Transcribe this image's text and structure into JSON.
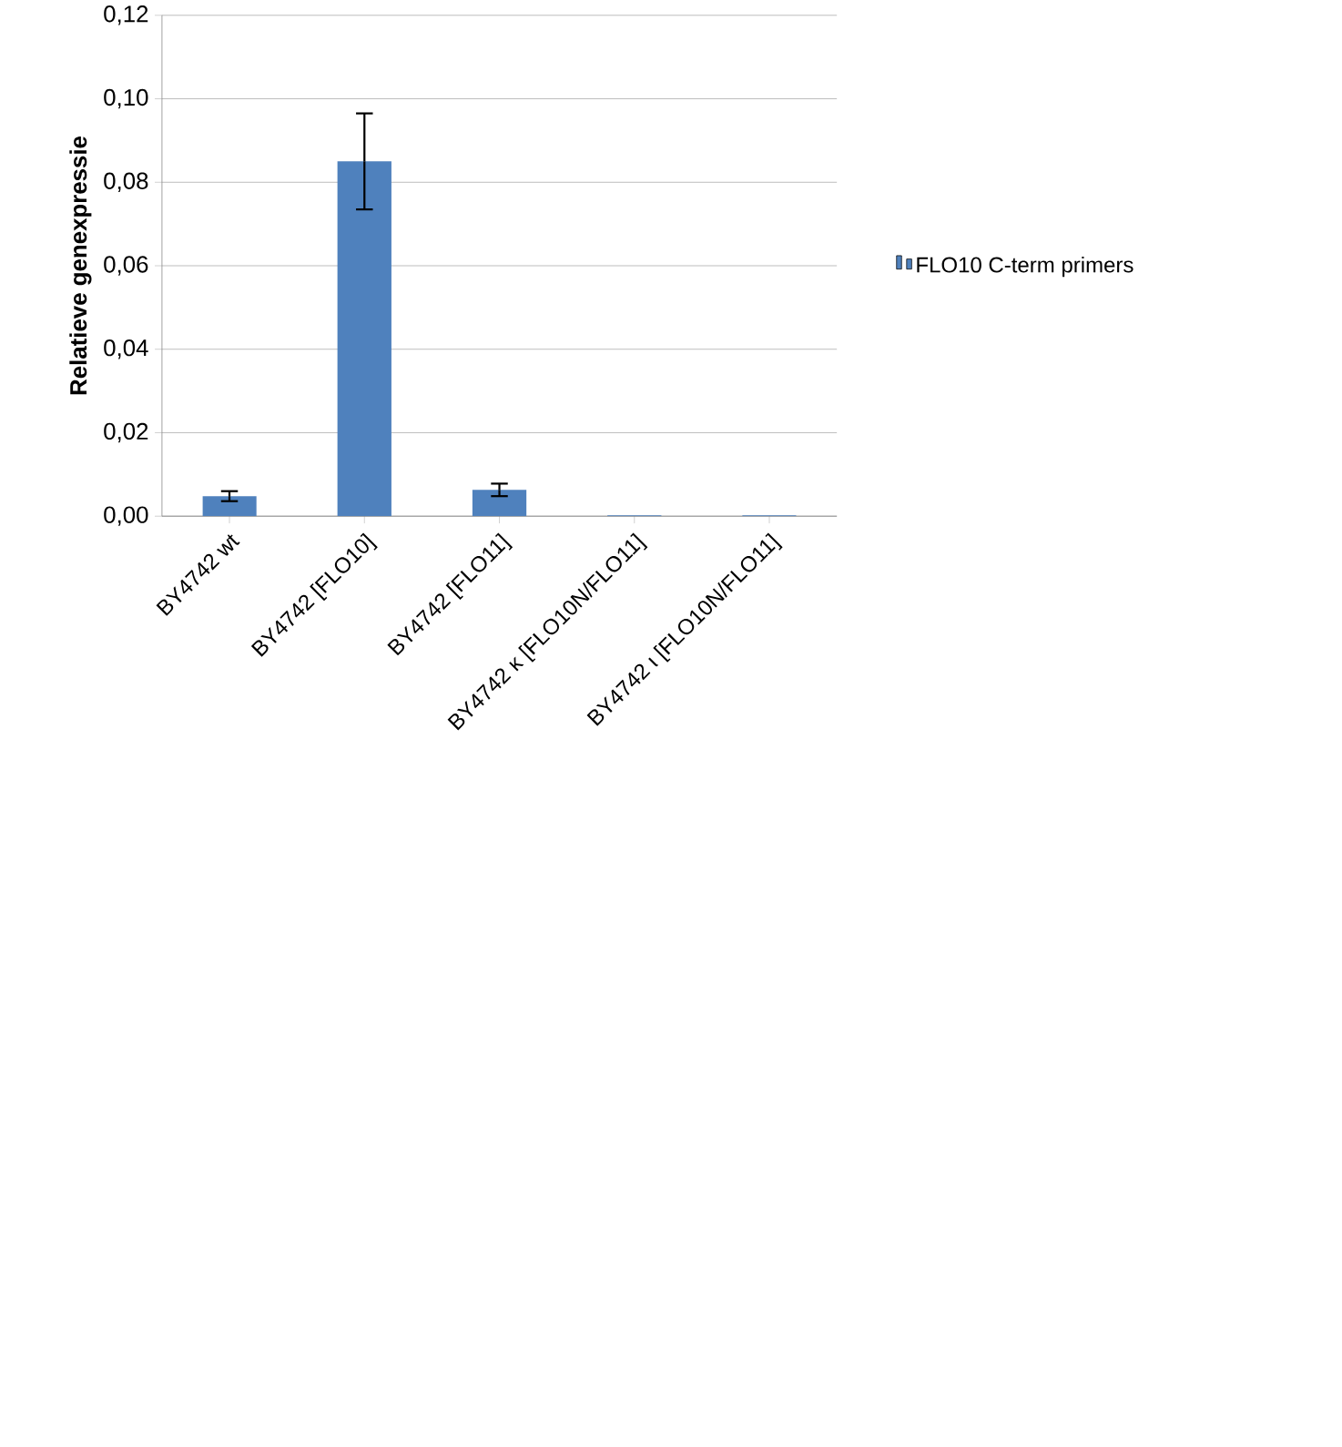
{
  "chart_data": {
    "type": "bar",
    "ylabel": "Relatieve genexpressie",
    "categories": [
      "BY4742 wt",
      "BY4742 [FLO10]",
      "BY4742 [FLO11]",
      "BY4742 κ [FLO10N/FLO11]",
      "BY4742 ι [FLO10N/FLO11]"
    ],
    "series": [
      {
        "name": "FLO10 C-term primers",
        "color": "#4f81bd",
        "values": [
          0.0048,
          0.085,
          0.0063,
          0.0002,
          0.0002
        ],
        "errors": [
          0.0012,
          0.0115,
          0.0015,
          null,
          null
        ]
      }
    ],
    "ylim": [
      0,
      0.12
    ],
    "yticks": [
      {
        "value": 0,
        "label": "0,00"
      },
      {
        "value": 0.02,
        "label": "0,02"
      },
      {
        "value": 0.04,
        "label": "0,04"
      },
      {
        "value": 0.06,
        "label": "0,06"
      },
      {
        "value": 0.08,
        "label": "0,08"
      },
      {
        "value": 0.1,
        "label": "0,10"
      },
      {
        "value": 0.12,
        "label": "0,12"
      }
    ],
    "grid": "y",
    "legend": "right"
  }
}
